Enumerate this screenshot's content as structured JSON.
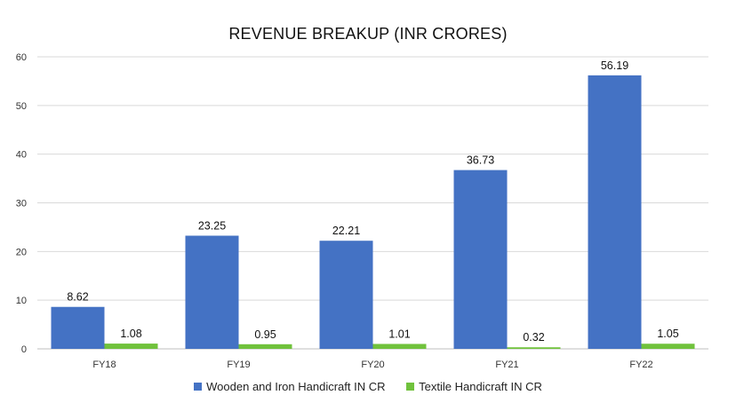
{
  "chart_data": {
    "type": "bar",
    "title": "REVENUE BREAKUP (INR CRORES)",
    "xlabel": "",
    "ylabel": "",
    "categories": [
      "FY18",
      "FY19",
      "FY20",
      "FY21",
      "FY22"
    ],
    "series": [
      {
        "name": "Wooden and Iron Handicraft IN CR",
        "color": "#4472C4",
        "values": [
          8.62,
          23.25,
          22.21,
          36.73,
          56.19
        ],
        "labels": [
          "8.62",
          "23.25",
          "22.21",
          "36.73",
          "56.19"
        ]
      },
      {
        "name": "Textile Handicraft IN CR",
        "color": "#70C23C",
        "values": [
          1.08,
          0.95,
          1.01,
          0.32,
          1.05
        ],
        "labels": [
          "1.08",
          "0.95",
          "1.01",
          "0.32",
          "1.05"
        ]
      }
    ],
    "ylim": [
      0,
      60
    ],
    "yticks": [
      0,
      10,
      20,
      30,
      40,
      50,
      60
    ],
    "grid": true,
    "legend": "bottom"
  }
}
